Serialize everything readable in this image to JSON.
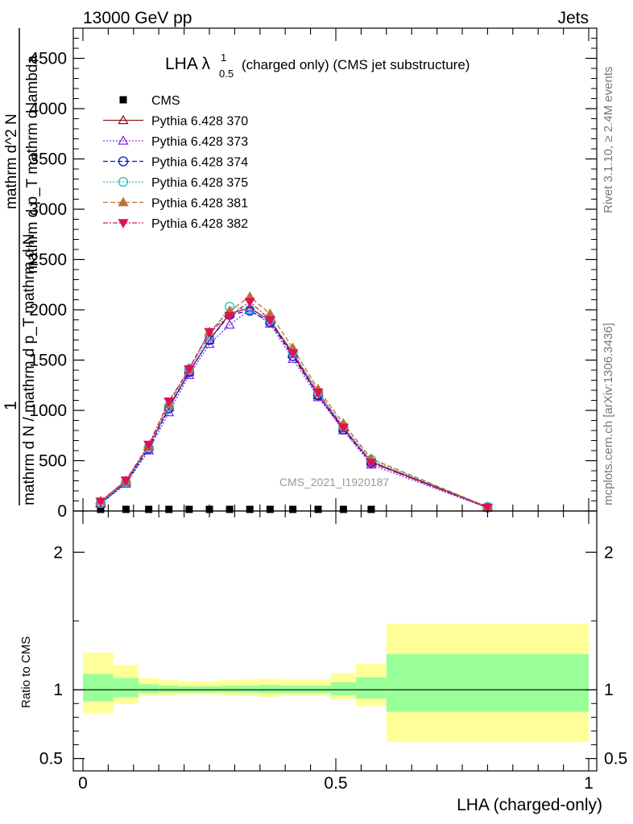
{
  "header": {
    "left": "13000 GeV pp",
    "right": "Jets"
  },
  "side": {
    "rivet": "Rivet 3.1.10, ≥ 2.4M events",
    "mcplots": "mcplots.cern.ch [arXiv:1306.3436]"
  },
  "main_panel": {
    "title_prefix": "LHA λ",
    "title_sup": "1",
    "title_sub": "0.5",
    "title_suffix": "(charged only) (CMS jet substructure)",
    "ylabel_numerator": "1",
    "ylabel_main": "mathrm d N / mathrm d p_T mathrm d N",
    "ylabel_den_top": "mathrm d^2 N",
    "ylabel_den_bot": "mathrm d p_T mathrm d lambda",
    "watermark": "CMS_2021_I1920187"
  },
  "ratio_panel": {
    "ylabel": "Ratio to CMS"
  },
  "xlabel": "LHA (charged-only)",
  "colors": {
    "cms": "#000000",
    "p370": "#8b1a1a",
    "p373": "#8a2be2",
    "p374": "#1010e0",
    "p375": "#20c0c0",
    "p381": "#b87333",
    "p382": "#e0105a",
    "band_inner": "#99ff99",
    "band_outer": "#ffff99"
  },
  "chart_data": [
    {
      "type": "line",
      "title": "LHA λ^1_0.5 (charged only) (CMS jet substructure)",
      "xlabel": "LHA (charged-only)",
      "ylabel": "1/N dN/dp_T dλ",
      "xlim": [
        0,
        1
      ],
      "ylim": [
        0,
        4800
      ],
      "yticks": [
        0,
        500,
        1000,
        1500,
        2000,
        2500,
        3000,
        3500,
        4000,
        4500
      ],
      "legend_position": "top-left",
      "x": [
        0.035,
        0.085,
        0.13,
        0.17,
        0.21,
        0.25,
        0.29,
        0.33,
        0.37,
        0.415,
        0.465,
        0.515,
        0.57,
        0.8
      ],
      "series": [
        {
          "name": "CMS",
          "marker": "square",
          "x": [
            0.035,
            0.085,
            0.13,
            0.17,
            0.21,
            0.25,
            0.29,
            0.33,
            0.37,
            0.415,
            0.465,
            0.515,
            0.57
          ],
          "values": [
            0,
            0,
            0,
            0,
            0,
            0,
            0,
            0,
            0,
            0,
            0,
            0,
            0
          ]
        },
        {
          "name": "Pythia 6.428 370",
          "marker": "triangle-up-open",
          "values": [
            80,
            290,
            640,
            1030,
            1380,
            1700,
            1960,
            2020,
            1890,
            1560,
            1150,
            820,
            490,
            40
          ]
        },
        {
          "name": "Pythia 6.428 373",
          "marker": "triangle-up-open",
          "values": [
            70,
            270,
            600,
            980,
            1350,
            1660,
            1850,
            2000,
            1860,
            1510,
            1130,
            800,
            460,
            30
          ]
        },
        {
          "name": "Pythia 6.428 374",
          "marker": "circle-open",
          "values": [
            75,
            280,
            620,
            1020,
            1380,
            1700,
            1950,
            1990,
            1880,
            1540,
            1150,
            810,
            480,
            35
          ]
        },
        {
          "name": "Pythia 6.428 375",
          "marker": "circle-open",
          "values": [
            80,
            285,
            630,
            1040,
            1410,
            1740,
            2030,
            2000,
            1900,
            1580,
            1180,
            840,
            510,
            40
          ]
        },
        {
          "name": "Pythia 6.428 381",
          "marker": "triangle-up",
          "values": [
            100,
            300,
            650,
            1060,
            1420,
            1780,
            1990,
            2130,
            1960,
            1620,
            1210,
            870,
            520,
            40
          ]
        },
        {
          "name": "Pythia 6.428 382",
          "marker": "triangle-down",
          "values": [
            95,
            305,
            660,
            1090,
            1410,
            1780,
            1940,
            2080,
            1900,
            1570,
            1180,
            830,
            480,
            35
          ]
        }
      ]
    },
    {
      "type": "area",
      "ylabel": "Ratio to CMS",
      "xlim": [
        0,
        1
      ],
      "ylim": [
        0.41,
        2.3
      ],
      "yticks": [
        0.5,
        1,
        2
      ],
      "reference_line": 1,
      "bins": [
        {
          "x0": 0.0,
          "x1": 0.06,
          "inner": [
            0.915,
            1.115
          ],
          "outer": [
            0.83,
            1.27
          ]
        },
        {
          "x0": 0.06,
          "x1": 0.11,
          "inner": [
            0.945,
            1.085
          ],
          "outer": [
            0.9,
            1.18
          ]
        },
        {
          "x0": 0.11,
          "x1": 0.15,
          "inner": [
            0.975,
            1.04
          ],
          "outer": [
            0.955,
            1.085
          ]
        },
        {
          "x0": 0.15,
          "x1": 0.19,
          "inner": [
            0.98,
            1.03
          ],
          "outer": [
            0.96,
            1.07
          ]
        },
        {
          "x0": 0.19,
          "x1": 0.23,
          "inner": [
            0.98,
            1.025
          ],
          "outer": [
            0.965,
            1.06
          ]
        },
        {
          "x0": 0.23,
          "x1": 0.27,
          "inner": [
            0.98,
            1.025
          ],
          "outer": [
            0.965,
            1.06
          ]
        },
        {
          "x0": 0.27,
          "x1": 0.31,
          "inner": [
            0.98,
            1.03
          ],
          "outer": [
            0.96,
            1.07
          ]
        },
        {
          "x0": 0.31,
          "x1": 0.35,
          "inner": [
            0.978,
            1.03
          ],
          "outer": [
            0.955,
            1.075
          ]
        },
        {
          "x0": 0.35,
          "x1": 0.39,
          "inner": [
            0.975,
            1.035
          ],
          "outer": [
            0.945,
            1.08
          ]
        },
        {
          "x0": 0.39,
          "x1": 0.44,
          "inner": [
            0.975,
            1.03
          ],
          "outer": [
            0.955,
            1.075
          ]
        },
        {
          "x0": 0.44,
          "x1": 0.49,
          "inner": [
            0.975,
            1.03
          ],
          "outer": [
            0.955,
            1.075
          ]
        },
        {
          "x0": 0.49,
          "x1": 0.54,
          "inner": [
            0.96,
            1.055
          ],
          "outer": [
            0.93,
            1.12
          ]
        },
        {
          "x0": 0.54,
          "x1": 0.6,
          "inner": [
            0.935,
            1.09
          ],
          "outer": [
            0.88,
            1.19
          ]
        },
        {
          "x0": 0.6,
          "x1": 1.0,
          "inner": [
            0.84,
            1.26
          ],
          "outer": [
            0.62,
            1.48
          ]
        }
      ]
    }
  ],
  "x_ticklabels": [
    "0",
    "0.5",
    "1"
  ]
}
